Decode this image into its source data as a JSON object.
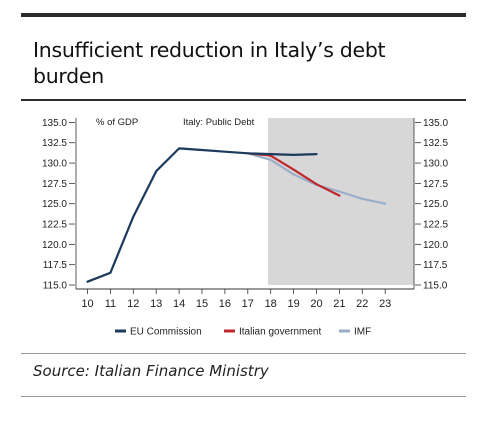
{
  "headline": "Insufficient reduction in Italy’s debt burden",
  "source": "Source: Italian Finance Ministry",
  "chart_data": {
    "type": "line",
    "title": "Italy: Public Debt",
    "ylabel": "% of GDP",
    "xlabel": "",
    "x_ticks": [
      "10",
      "11",
      "12",
      "13",
      "14",
      "15",
      "16",
      "17",
      "18",
      "19",
      "20",
      "21",
      "22",
      "23"
    ],
    "ylim": [
      115,
      135
    ],
    "y_ticks": [
      "115.0",
      "117.5",
      "120.0",
      "122.5",
      "125.0",
      "127.5",
      "130.0",
      "132.5",
      "135.0"
    ],
    "shaded_from": "17",
    "legend_position": "bottom",
    "series": [
      {
        "name": "EU Commission",
        "color": "#1b3a5c",
        "x": [
          "10",
          "11",
          "12",
          "13",
          "14",
          "15",
          "16",
          "17",
          "18",
          "19",
          "20"
        ],
        "values": [
          115.4,
          116.5,
          123.4,
          129.0,
          131.8,
          131.6,
          131.4,
          131.2,
          131.1,
          131.0,
          131.1
        ]
      },
      {
        "name": "Italian government",
        "color": "#c0272d",
        "x": [
          "17",
          "18",
          "19",
          "20",
          "21"
        ],
        "values": [
          131.2,
          130.9,
          129.2,
          127.4,
          126.0
        ]
      },
      {
        "name": "IMF",
        "color": "#9aafc7",
        "x": [
          "17",
          "18",
          "19",
          "20",
          "21",
          "22",
          "23"
        ],
        "values": [
          131.2,
          130.4,
          128.6,
          127.3,
          126.5,
          125.6,
          125.0
        ]
      }
    ]
  }
}
